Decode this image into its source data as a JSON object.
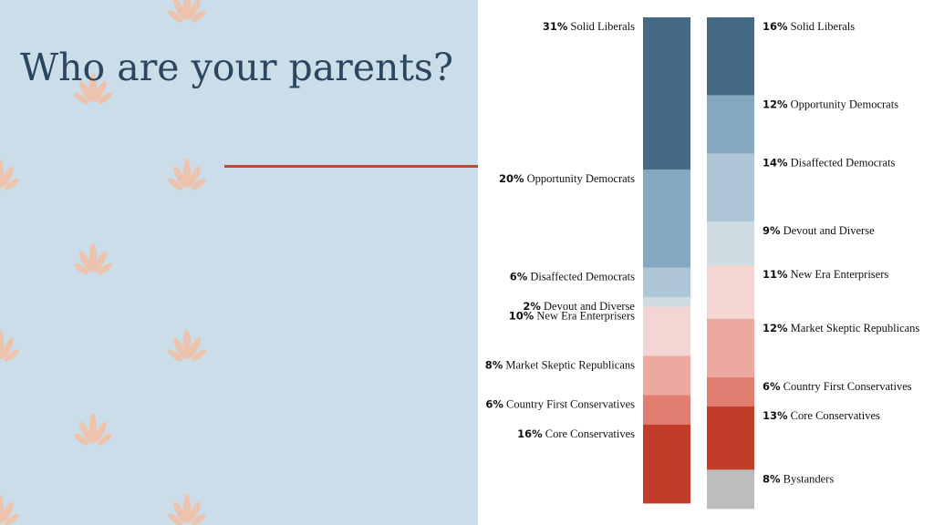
{
  "slide": {
    "title": "Who are your parents?"
  },
  "colors": {
    "background_left": "#cbdde9",
    "accent_line": "#c0472d",
    "leaf_motif": "#eec3ad",
    "title_text": "#2c4660"
  },
  "chart_data": [
    {
      "type": "bar",
      "stacked": true,
      "normalized": true,
      "unit": "%",
      "segments": [
        {
          "category": "Solid Liberals",
          "value": 31,
          "color": "#456a84"
        },
        {
          "category": "Opportunity Democrats",
          "value": 20,
          "color": "#85a8c0"
        },
        {
          "category": "Disaffected Democrats",
          "value": 6,
          "color": "#afc6d6"
        },
        {
          "category": "Devout and Diverse",
          "value": 2,
          "color": "#cedbe2"
        },
        {
          "category": "New Era Enterprisers",
          "value": 10,
          "color": "#f3d5d1"
        },
        {
          "category": "Market Skeptic Republicans",
          "value": 8,
          "color": "#eba9a0"
        },
        {
          "category": "Country First Conservatives",
          "value": 6,
          "color": "#e27d71"
        },
        {
          "category": "Core Conservatives",
          "value": 16,
          "color": "#c13c29"
        }
      ]
    },
    {
      "type": "bar",
      "stacked": true,
      "normalized": true,
      "unit": "%",
      "segments": [
        {
          "category": "Solid Liberals",
          "value": 16,
          "color": "#456a84"
        },
        {
          "category": "Opportunity Democrats",
          "value": 12,
          "color": "#85a8c0"
        },
        {
          "category": "Disaffected Democrats",
          "value": 14,
          "color": "#afc6d6"
        },
        {
          "category": "Devout and Diverse",
          "value": 9,
          "color": "#cedbe2"
        },
        {
          "category": "New Era Enterprisers",
          "value": 11,
          "color": "#f3d5d1"
        },
        {
          "category": "Market Skeptic Republicans",
          "value": 12,
          "color": "#eba9a0"
        },
        {
          "category": "Country First Conservatives",
          "value": 6,
          "color": "#e27d71"
        },
        {
          "category": "Core Conservatives",
          "value": 13,
          "color": "#c13c29"
        },
        {
          "category": "Bystanders",
          "value": 8,
          "color": "#bdbdbf"
        }
      ]
    }
  ]
}
